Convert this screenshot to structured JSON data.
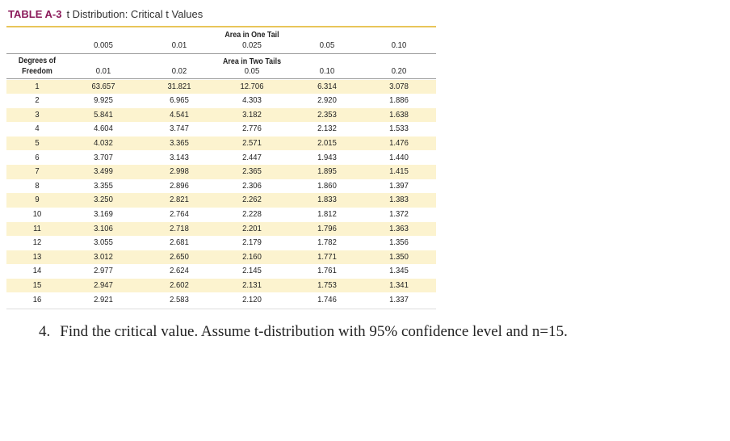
{
  "header": {
    "label": "TABLE A-3",
    "title": "t Distribution: Critical t Values"
  },
  "table": {
    "one_tail_heading": "Area in One Tail",
    "one_tail": [
      "0.005",
      "0.01",
      "0.025",
      "0.05",
      "0.10"
    ],
    "df_heading": "Degrees of Freedom",
    "two_tails_heading": "Area in Two Tails",
    "two_tails": [
      "0.01",
      "0.02",
      "0.05",
      "0.10",
      "0.20"
    ],
    "rows": [
      [
        "1",
        "63.657",
        "31.821",
        "12.706",
        "6.314",
        "3.078"
      ],
      [
        "2",
        "9.925",
        "6.965",
        "4.303",
        "2.920",
        "1.886"
      ],
      [
        "3",
        "5.841",
        "4.541",
        "3.182",
        "2.353",
        "1.638"
      ],
      [
        "4",
        "4.604",
        "3.747",
        "2.776",
        "2.132",
        "1.533"
      ],
      [
        "5",
        "4.032",
        "3.365",
        "2.571",
        "2.015",
        "1.476"
      ],
      [
        "6",
        "3.707",
        "3.143",
        "2.447",
        "1.943",
        "1.440"
      ],
      [
        "7",
        "3.499",
        "2.998",
        "2.365",
        "1.895",
        "1.415"
      ],
      [
        "8",
        "3.355",
        "2.896",
        "2.306",
        "1.860",
        "1.397"
      ],
      [
        "9",
        "3.250",
        "2.821",
        "2.262",
        "1.833",
        "1.383"
      ],
      [
        "10",
        "3.169",
        "2.764",
        "2.228",
        "1.812",
        "1.372"
      ],
      [
        "11",
        "3.106",
        "2.718",
        "2.201",
        "1.796",
        "1.363"
      ],
      [
        "12",
        "3.055",
        "2.681",
        "2.179",
        "1.782",
        "1.356"
      ],
      [
        "13",
        "3.012",
        "2.650",
        "2.160",
        "1.771",
        "1.350"
      ],
      [
        "14",
        "2.977",
        "2.624",
        "2.145",
        "1.761",
        "1.345"
      ],
      [
        "15",
        "2.947",
        "2.602",
        "2.131",
        "1.753",
        "1.341"
      ],
      [
        "16",
        "2.921",
        "2.583",
        "2.120",
        "1.746",
        "1.337"
      ]
    ]
  },
  "question": {
    "number": "4.",
    "text": "Find the critical value. Assume t-distribution with 95% confidence level and n=15."
  }
}
